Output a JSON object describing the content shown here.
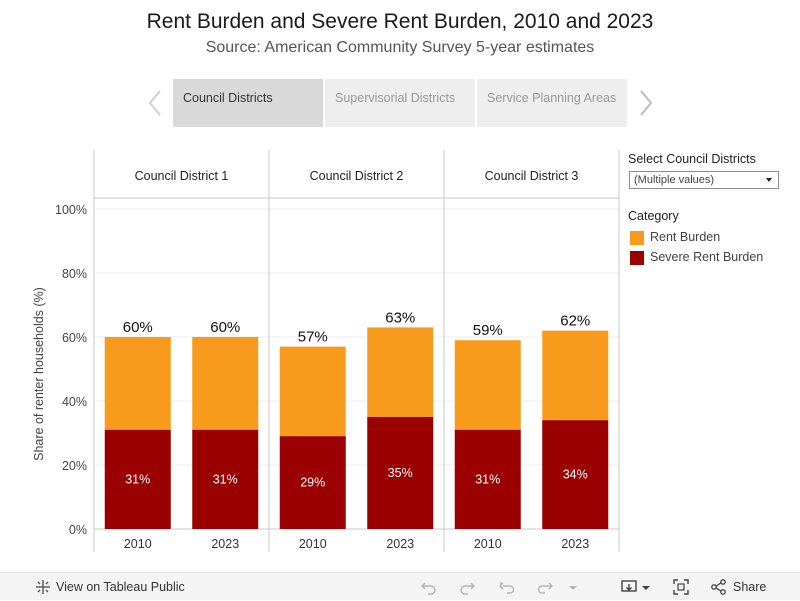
{
  "title": "Rent Burden and Severe Rent Burden, 2010 and 2023",
  "subtitle": "Source: American Community Survey 5-year estimates",
  "tabs": [
    {
      "label": "Council Districts",
      "active": true
    },
    {
      "label": "Supervisorial Districts",
      "active": false
    },
    {
      "label": "Service Planning Areas",
      "active": false
    }
  ],
  "filter": {
    "title": "Select Council Districts",
    "value": "(Multiple values)"
  },
  "legend": {
    "title": "Category",
    "items": [
      {
        "label": "Rent Burden",
        "color": "#f89b1c"
      },
      {
        "label": "Severe Rent Burden",
        "color": "#9b0000"
      }
    ]
  },
  "footer": {
    "view_label": "View on Tableau Public",
    "share_label": "Share"
  },
  "chart_data": {
    "type": "bar",
    "stacked": true,
    "ylabel": "Share of renter households (%)",
    "ylim": [
      0,
      100
    ],
    "yticks": [
      0,
      20,
      40,
      60,
      80,
      100
    ],
    "ytick_labels": [
      "0%",
      "20%",
      "40%",
      "60%",
      "80%",
      "100%"
    ],
    "groups": [
      {
        "label": "Council District 1",
        "categories": [
          "2010",
          "2023"
        ],
        "totals": [
          60,
          60
        ],
        "total_labels": [
          "60%",
          "60%"
        ],
        "severe": [
          31,
          31
        ],
        "severe_labels": [
          "31%",
          "31%"
        ]
      },
      {
        "label": "Council District 2",
        "categories": [
          "2010",
          "2023"
        ],
        "totals": [
          57,
          63
        ],
        "total_labels": [
          "57%",
          "63%"
        ],
        "severe": [
          29,
          35
        ],
        "severe_labels": [
          "29%",
          "35%"
        ]
      },
      {
        "label": "Council District 3",
        "categories": [
          "2010",
          "2023"
        ],
        "totals": [
          59,
          62
        ],
        "total_labels": [
          "59%",
          "62%"
        ],
        "severe": [
          31,
          34
        ],
        "severe_labels": [
          "31%",
          "34%"
        ]
      }
    ],
    "colors": {
      "rent_burden": "#f89b1c",
      "severe_rent_burden": "#9b0000"
    }
  }
}
